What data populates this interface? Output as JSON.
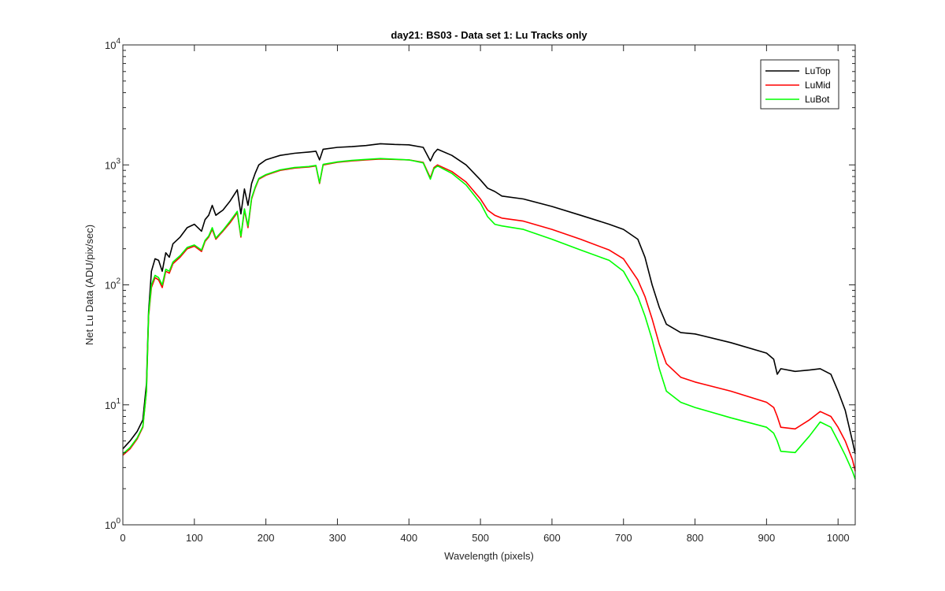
{
  "chart_data": {
    "type": "line",
    "title": "day21: BS03 - Data set 1: Lu Tracks only",
    "xlabel": "Wavelength (pixels)",
    "ylabel": "Net Lu Data (ADU/pix/sec)",
    "xlim": [
      0,
      1024
    ],
    "ylim": [
      1,
      10000
    ],
    "yscale": "log",
    "grid": false,
    "legend_position": "top-right",
    "x_ticks": [
      0,
      100,
      200,
      300,
      400,
      500,
      600,
      700,
      800,
      900,
      1000
    ],
    "x_tick_labels": [
      "0",
      "100",
      "200",
      "300",
      "400",
      "500",
      "600",
      "700",
      "800",
      "900",
      "1000"
    ],
    "y_ticks": [
      1,
      10,
      100,
      1000,
      10000
    ],
    "y_tick_labels": [
      {
        "base": "10",
        "exp": "0"
      },
      {
        "base": "10",
        "exp": "1"
      },
      {
        "base": "10",
        "exp": "2"
      },
      {
        "base": "10",
        "exp": "3"
      },
      {
        "base": "10",
        "exp": "4"
      }
    ],
    "series": [
      {
        "name": "LuTop",
        "color": "#000000",
        "x": [
          0,
          10,
          20,
          28,
          33,
          36,
          40,
          45,
          50,
          55,
          60,
          65,
          70,
          80,
          90,
          100,
          110,
          115,
          120,
          125,
          130,
          135,
          140,
          150,
          160,
          165,
          170,
          175,
          180,
          185,
          190,
          200,
          210,
          220,
          240,
          260,
          270,
          275,
          280,
          300,
          320,
          340,
          360,
          380,
          400,
          420,
          430,
          435,
          440,
          460,
          480,
          500,
          510,
          520,
          530,
          560,
          600,
          640,
          680,
          700,
          720,
          730,
          740,
          750,
          760,
          780,
          800,
          850,
          900,
          910,
          915,
          920,
          940,
          960,
          975,
          990,
          1000,
          1010,
          1020,
          1024
        ],
        "y": [
          4.3,
          5.0,
          6.0,
          7.5,
          15,
          60,
          130,
          165,
          160,
          130,
          185,
          170,
          220,
          250,
          300,
          320,
          280,
          350,
          380,
          460,
          380,
          400,
          420,
          500,
          620,
          390,
          630,
          460,
          700,
          850,
          1000,
          1100,
          1150,
          1200,
          1250,
          1280,
          1300,
          1100,
          1350,
          1400,
          1420,
          1450,
          1500,
          1480,
          1470,
          1400,
          1080,
          1250,
          1350,
          1200,
          1000,
          750,
          640,
          600,
          550,
          520,
          450,
          380,
          320,
          290,
          240,
          170,
          100,
          65,
          47,
          40,
          39,
          33,
          27,
          24,
          18,
          20,
          19,
          19.5,
          20,
          18,
          13,
          9,
          5,
          3.9
        ]
      },
      {
        "name": "LuMid",
        "color": "#ff0000",
        "x": [
          0,
          10,
          20,
          28,
          33,
          36,
          40,
          45,
          50,
          55,
          60,
          65,
          70,
          80,
          90,
          100,
          110,
          115,
          120,
          125,
          130,
          135,
          140,
          150,
          160,
          165,
          170,
          175,
          180,
          185,
          190,
          200,
          210,
          220,
          240,
          260,
          270,
          275,
          280,
          300,
          320,
          340,
          360,
          380,
          400,
          420,
          430,
          435,
          440,
          460,
          480,
          500,
          510,
          520,
          530,
          560,
          600,
          640,
          680,
          700,
          720,
          730,
          740,
          750,
          760,
          780,
          800,
          850,
          900,
          910,
          915,
          920,
          940,
          960,
          975,
          990,
          1000,
          1010,
          1020,
          1024
        ],
        "y": [
          3.8,
          4.3,
          5.2,
          6.5,
          13,
          55,
          95,
          115,
          110,
          95,
          130,
          125,
          150,
          170,
          200,
          210,
          190,
          230,
          250,
          290,
          240,
          260,
          280,
          330,
          400,
          250,
          420,
          300,
          520,
          640,
          760,
          820,
          860,
          900,
          940,
          960,
          980,
          700,
          1000,
          1050,
          1080,
          1100,
          1120,
          1110,
          1100,
          1050,
          780,
          950,
          1000,
          880,
          720,
          520,
          420,
          380,
          360,
          340,
          290,
          240,
          195,
          165,
          110,
          80,
          52,
          32,
          22,
          17,
          15.5,
          13,
          10.5,
          9.5,
          8,
          6.5,
          6.3,
          7.5,
          8.8,
          8.0,
          6.5,
          5.0,
          3.5,
          2.8
        ]
      },
      {
        "name": "LuBot",
        "color": "#00ff00",
        "x": [
          0,
          10,
          20,
          28,
          33,
          36,
          40,
          45,
          50,
          55,
          60,
          65,
          70,
          80,
          90,
          100,
          110,
          115,
          120,
          125,
          130,
          135,
          140,
          150,
          160,
          165,
          170,
          175,
          180,
          185,
          190,
          200,
          210,
          220,
          240,
          260,
          270,
          275,
          280,
          300,
          320,
          340,
          360,
          380,
          400,
          420,
          430,
          435,
          440,
          460,
          480,
          500,
          510,
          520,
          530,
          560,
          600,
          640,
          680,
          700,
          720,
          730,
          740,
          750,
          760,
          780,
          800,
          850,
          900,
          910,
          915,
          920,
          940,
          960,
          975,
          990,
          1000,
          1010,
          1020,
          1024
        ],
        "y": [
          3.9,
          4.4,
          5.3,
          6.6,
          13,
          57,
          100,
          120,
          115,
          100,
          135,
          130,
          155,
          175,
          205,
          215,
          195,
          235,
          255,
          300,
          245,
          265,
          285,
          340,
          410,
          255,
          430,
          310,
          530,
          650,
          770,
          830,
          870,
          910,
          950,
          970,
          990,
          710,
          1010,
          1060,
          1090,
          1110,
          1130,
          1115,
          1100,
          1040,
          760,
          930,
          980,
          850,
          680,
          480,
          370,
          320,
          310,
          290,
          240,
          195,
          160,
          130,
          80,
          55,
          35,
          20,
          13,
          10.5,
          9.5,
          7.8,
          6.5,
          5.8,
          5.0,
          4.1,
          4.0,
          5.5,
          7.2,
          6.5,
          5.0,
          3.8,
          2.8,
          2.4
        ]
      }
    ]
  }
}
